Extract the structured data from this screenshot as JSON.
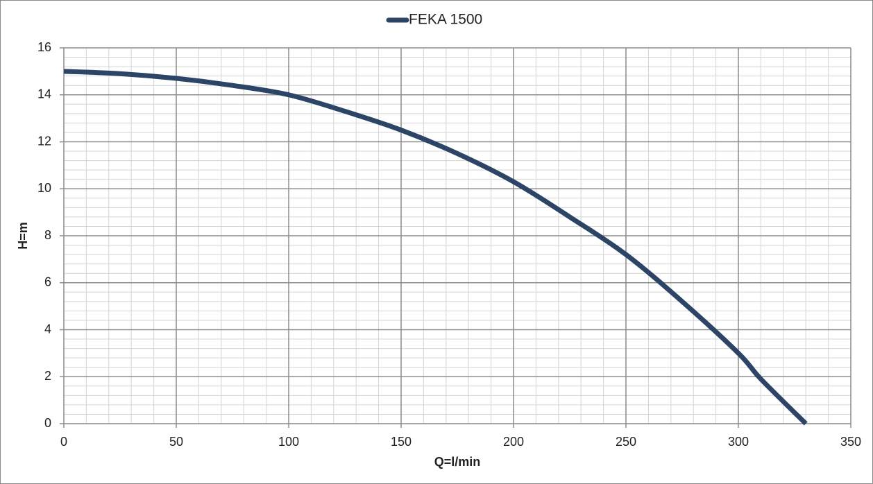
{
  "chart_data": {
    "type": "line",
    "x_label": "Q=l/min",
    "y_label": "H=m",
    "x": [
      0,
      25,
      50,
      75,
      100,
      125,
      150,
      175,
      200,
      225,
      250,
      275,
      300,
      310,
      330
    ],
    "series": [
      {
        "name": "FEKA 1500",
        "color": "#2c4466",
        "values": [
          15,
          14.9,
          14.7,
          14.4,
          14,
          13.3,
          12.5,
          11.5,
          10.3,
          8.8,
          7.2,
          5.2,
          3,
          1.9,
          0
        ]
      }
    ],
    "xlim": [
      0,
      350
    ],
    "ylim": [
      0,
      16
    ],
    "xticks": [
      0,
      50,
      100,
      150,
      200,
      250,
      300,
      350
    ],
    "yticks": [
      0,
      2,
      4,
      6,
      8,
      10,
      12,
      14,
      16
    ],
    "grid": true,
    "x_minor_step": 10,
    "y_minor_step": 0.4,
    "legend": "top"
  }
}
